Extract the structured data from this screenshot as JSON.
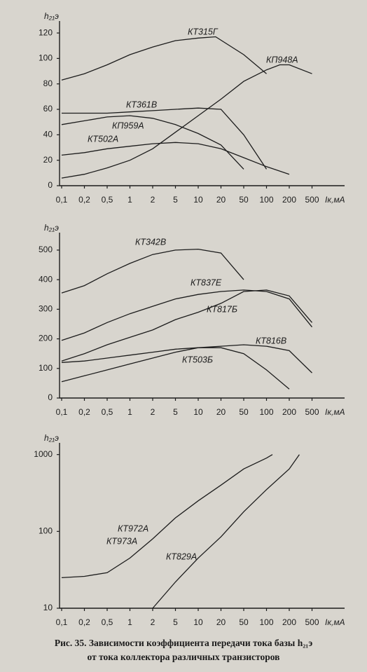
{
  "chart_data": [
    {
      "type": "line",
      "y_label": "h₂₁э",
      "x_label": "Iк,мА",
      "xscale": "log",
      "ylim": [
        0,
        125
      ],
      "yticks": [
        0,
        20,
        40,
        60,
        80,
        100,
        120
      ],
      "xlim": [
        0.1,
        1000
      ],
      "xticks": [
        {
          "value": 0.1,
          "label": "0,1"
        },
        {
          "value": 0.2,
          "label": "0,2"
        },
        {
          "value": 0.5,
          "label": "0,5"
        },
        1,
        2,
        5,
        10,
        20,
        50,
        100,
        200,
        500
      ],
      "series": [
        {
          "name": "КТ315Г",
          "color": "#1c1c1c",
          "x": [
            0.1,
            0.2,
            0.5,
            1,
            2,
            5,
            10,
            17,
            50,
            100
          ],
          "values": [
            83,
            88,
            95,
            103,
            109,
            114,
            116,
            117,
            103,
            88
          ]
        },
        {
          "name": "КП948А",
          "color": "#1c1c1c",
          "x": [
            0.1,
            0.2,
            0.5,
            1,
            2,
            5,
            10,
            20,
            50,
            100,
            150,
            200,
            500
          ],
          "values": [
            6,
            9,
            14,
            20,
            29,
            42,
            55,
            68,
            82,
            91,
            95,
            95,
            88
          ]
        },
        {
          "name": "КТ361В",
          "color": "#1c1c1c",
          "x": [
            0.1,
            0.2,
            0.5,
            1,
            2,
            5,
            10,
            20,
            50,
            100
          ],
          "values": [
            57,
            57,
            57,
            58,
            59,
            60,
            61,
            60,
            40,
            13
          ]
        },
        {
          "name": "КП959А",
          "color": "#1c1c1c",
          "x": [
            0.1,
            0.2,
            0.5,
            1,
            2,
            5,
            10,
            20,
            50
          ],
          "values": [
            48,
            51,
            54,
            55,
            53,
            48,
            41,
            32,
            13
          ]
        },
        {
          "name": "КТ502А",
          "color": "#1c1c1c",
          "x": [
            0.1,
            0.2,
            0.5,
            1,
            2,
            5,
            10,
            20,
            50,
            100,
            200
          ],
          "values": [
            24,
            26,
            29,
            31,
            33,
            34,
            33,
            29,
            22,
            15,
            9
          ]
        }
      ]
    },
    {
      "type": "line",
      "y_label": "h₂₁э",
      "x_label": "Iк,мА",
      "xscale": "log",
      "ylim": [
        0,
        540
      ],
      "yticks": [
        0,
        100,
        200,
        300,
        400,
        500
      ],
      "xlim": [
        0.1,
        1000
      ],
      "xticks": [
        {
          "value": 0.1,
          "label": "0,1"
        },
        {
          "value": 0.2,
          "label": "0,2"
        },
        {
          "value": 0.5,
          "label": "0,5"
        },
        1,
        2,
        5,
        10,
        20,
        50,
        100,
        200,
        500
      ],
      "series": [
        {
          "name": "КТ342В",
          "color": "#1c1c1c",
          "x": [
            0.1,
            0.2,
            0.5,
            1,
            2,
            5,
            10,
            20,
            50
          ],
          "values": [
            355,
            380,
            420,
            455,
            485,
            500,
            503,
            490,
            400
          ]
        },
        {
          "name": "КТ837Е",
          "color": "#1c1c1c",
          "x": [
            0.1,
            0.2,
            0.5,
            1,
            2,
            5,
            10,
            20,
            50,
            100,
            200,
            500
          ],
          "values": [
            195,
            220,
            255,
            285,
            310,
            335,
            350,
            360,
            365,
            360,
            335,
            240
          ]
        },
        {
          "name": "КТ817Б",
          "color": "#1c1c1c",
          "x": [
            0.1,
            0.2,
            0.5,
            1,
            2,
            5,
            10,
            20,
            50,
            100,
            200,
            500
          ],
          "values": [
            125,
            150,
            180,
            205,
            230,
            265,
            290,
            320,
            360,
            365,
            345,
            255
          ]
        },
        {
          "name": "КТ816В",
          "color": "#1c1c1c",
          "x": [
            0.1,
            0.2,
            0.5,
            1,
            2,
            5,
            10,
            20,
            50,
            100,
            200,
            500
          ],
          "values": [
            120,
            125,
            135,
            145,
            155,
            165,
            170,
            175,
            180,
            175,
            160,
            85
          ]
        },
        {
          "name": "КТ503Б",
          "color": "#1c1c1c",
          "x": [
            0.1,
            0.2,
            0.5,
            1,
            2,
            5,
            10,
            20,
            50,
            100,
            200
          ],
          "values": [
            55,
            75,
            95,
            115,
            135,
            155,
            170,
            170,
            150,
            95,
            30
          ]
        }
      ]
    },
    {
      "type": "line",
      "y_label": "h₂₁э",
      "x_label": "Iк,мА",
      "xscale": "log",
      "yscale": "log",
      "ylim": [
        10,
        1200
      ],
      "yticks": [
        10,
        100,
        1000
      ],
      "xlim": [
        0.1,
        1000
      ],
      "xticks": [
        {
          "value": 0.1,
          "label": "0,1"
        },
        {
          "value": 0.2,
          "label": "0,2"
        },
        {
          "value": 0.5,
          "label": "0,5"
        },
        1,
        2,
        5,
        10,
        20,
        50,
        100,
        200,
        500
      ],
      "series": [
        {
          "name": [
            "КТ972А",
            "КТ973А"
          ],
          "color": "#1c1c1c",
          "x": [
            0.1,
            0.2,
            0.5,
            1,
            2,
            5,
            10,
            20,
            50,
            100,
            120
          ],
          "values": [
            25,
            26,
            29,
            45,
            80,
            150,
            250,
            400,
            650,
            900,
            1000
          ]
        },
        {
          "name": "КТ829А",
          "color": "#1c1c1c",
          "x": [
            2,
            5,
            10,
            20,
            50,
            100,
            200,
            300
          ],
          "values": [
            10,
            22,
            45,
            85,
            180,
            350,
            650,
            1000
          ]
        }
      ]
    }
  ],
  "caption": [
    "Рис. 35. Зависимости коэффициента передачи тока базы h₂₁э",
    "от тока коллектора различных транзисторов"
  ]
}
